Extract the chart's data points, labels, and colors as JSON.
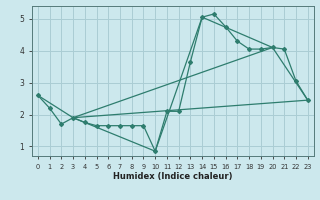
{
  "xlabel": "Humidex (Indice chaleur)",
  "ylabel": "",
  "background_color": "#cce8ed",
  "grid_color": "#aacdd4",
  "line_color": "#2e7d6e",
  "xlim": [
    -0.5,
    23.5
  ],
  "ylim": [
    0.7,
    5.4
  ],
  "yticks": [
    1,
    2,
    3,
    4,
    5
  ],
  "xticks": [
    0,
    1,
    2,
    3,
    4,
    5,
    6,
    7,
    8,
    9,
    10,
    11,
    12,
    13,
    14,
    15,
    16,
    17,
    18,
    19,
    20,
    21,
    22,
    23
  ],
  "series_main": {
    "x": [
      0,
      1,
      2,
      3,
      4,
      5,
      6,
      7,
      8,
      9,
      10,
      11,
      12,
      13,
      14,
      15,
      16,
      17,
      18,
      19,
      20,
      21,
      22,
      23
    ],
    "y": [
      2.6,
      2.2,
      1.7,
      1.9,
      1.75,
      1.65,
      1.65,
      1.65,
      1.65,
      1.65,
      0.85,
      2.1,
      2.1,
      3.65,
      5.05,
      5.15,
      4.75,
      4.3,
      4.05,
      4.05,
      4.1,
      4.05,
      3.05,
      2.45
    ]
  },
  "series_lines": [
    {
      "x": [
        0,
        3,
        10,
        14,
        20,
        23
      ],
      "y": [
        2.6,
        1.9,
        0.85,
        5.05,
        4.1,
        2.45
      ]
    },
    {
      "x": [
        3,
        20
      ],
      "y": [
        1.9,
        4.1
      ]
    },
    {
      "x": [
        3,
        23
      ],
      "y": [
        1.9,
        2.45
      ]
    }
  ]
}
